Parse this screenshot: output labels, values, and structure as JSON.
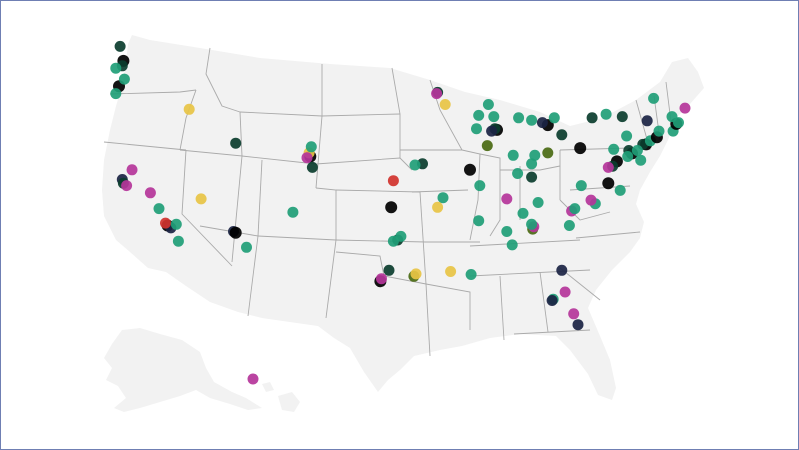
{
  "map": {
    "region": "United States",
    "legend": [],
    "colors": {
      "teal": "#1f9e77",
      "dark_green": "#0b3d2e",
      "black": "#000000",
      "navy": "#1b2444",
      "magenta": "#b5359a",
      "yellow": "#e8c445",
      "olive": "#4a6a12",
      "red": "#d1332e"
    },
    "markers": [
      {
        "lon": -122.3,
        "lat": 47.6,
        "color": "black"
      },
      {
        "lon": -122.4,
        "lat": 47.2,
        "color": "dark_green"
      },
      {
        "lon": -122.6,
        "lat": 48.8,
        "color": "dark_green"
      },
      {
        "lon": -123.0,
        "lat": 47.0,
        "color": "teal"
      },
      {
        "lon": -122.7,
        "lat": 45.5,
        "color": "black"
      },
      {
        "lon": -123.0,
        "lat": 44.9,
        "color": "teal"
      },
      {
        "lon": -122.2,
        "lat": 46.1,
        "color": "teal"
      },
      {
        "lon": -116.2,
        "lat": 43.6,
        "color": "yellow"
      },
      {
        "lon": -122.4,
        "lat": 37.8,
        "color": "navy"
      },
      {
        "lon": -122.3,
        "lat": 37.5,
        "color": "dark_green"
      },
      {
        "lon": -122.0,
        "lat": 37.3,
        "color": "magenta"
      },
      {
        "lon": -121.5,
        "lat": 38.6,
        "color": "magenta"
      },
      {
        "lon": -119.8,
        "lat": 36.7,
        "color": "magenta"
      },
      {
        "lon": -118.2,
        "lat": 34.0,
        "color": "black"
      },
      {
        "lon": -117.9,
        "lat": 33.8,
        "color": "navy"
      },
      {
        "lon": -118.4,
        "lat": 34.2,
        "color": "red"
      },
      {
        "lon": -117.2,
        "lat": 32.7,
        "color": "teal"
      },
      {
        "lon": -119.0,
        "lat": 35.4,
        "color": "teal"
      },
      {
        "lon": -117.4,
        "lat": 34.1,
        "color": "teal"
      },
      {
        "lon": -115.1,
        "lat": 36.2,
        "color": "yellow"
      },
      {
        "lon": -111.9,
        "lat": 40.8,
        "color": "dark_green"
      },
      {
        "lon": -112.1,
        "lat": 33.5,
        "color": "navy"
      },
      {
        "lon": -111.9,
        "lat": 33.4,
        "color": "black"
      },
      {
        "lon": -110.9,
        "lat": 32.2,
        "color": "teal"
      },
      {
        "lon": -106.6,
        "lat": 35.1,
        "color": "teal"
      },
      {
        "lon": -104.99,
        "lat": 39.7,
        "color": "black"
      },
      {
        "lon": -105.1,
        "lat": 40.0,
        "color": "yellow"
      },
      {
        "lon": -104.8,
        "lat": 38.8,
        "color": "dark_green"
      },
      {
        "lon": -105.3,
        "lat": 39.6,
        "color": "magenta"
      },
      {
        "lon": -104.9,
        "lat": 40.5,
        "color": "teal"
      },
      {
        "lon": -93.2,
        "lat": 45.0,
        "color": "dark_green"
      },
      {
        "lon": -93.3,
        "lat": 44.9,
        "color": "magenta"
      },
      {
        "lon": -92.5,
        "lat": 44.0,
        "color": "yellow"
      },
      {
        "lon": -89.4,
        "lat": 43.1,
        "color": "teal"
      },
      {
        "lon": -88.5,
        "lat": 44.0,
        "color": "teal"
      },
      {
        "lon": -88.0,
        "lat": 43.0,
        "color": "teal"
      },
      {
        "lon": -87.7,
        "lat": 41.9,
        "color": "black"
      },
      {
        "lon": -87.9,
        "lat": 42.0,
        "color": "dark_green"
      },
      {
        "lon": -88.2,
        "lat": 41.8,
        "color": "navy"
      },
      {
        "lon": -88.6,
        "lat": 40.6,
        "color": "olive"
      },
      {
        "lon": -89.6,
        "lat": 42.0,
        "color": "teal"
      },
      {
        "lon": -90.2,
        "lat": 38.6,
        "color": "black"
      },
      {
        "lon": -89.3,
        "lat": 37.3,
        "color": "teal"
      },
      {
        "lon": -94.6,
        "lat": 39.1,
        "color": "dark_green"
      },
      {
        "lon": -95.3,
        "lat": 39.0,
        "color": "teal"
      },
      {
        "lon": -97.3,
        "lat": 37.7,
        "color": "red"
      },
      {
        "lon": -92.7,
        "lat": 36.3,
        "color": "teal"
      },
      {
        "lon": -93.2,
        "lat": 35.5,
        "color": "yellow"
      },
      {
        "lon": -97.5,
        "lat": 35.5,
        "color": "black"
      },
      {
        "lon": -96.9,
        "lat": 32.8,
        "color": "dark_green"
      },
      {
        "lon": -97.3,
        "lat": 32.7,
        "color": "teal"
      },
      {
        "lon": -96.6,
        "lat": 33.1,
        "color": "teal"
      },
      {
        "lon": -97.7,
        "lat": 30.3,
        "color": "dark_green"
      },
      {
        "lon": -98.5,
        "lat": 29.4,
        "color": "black"
      },
      {
        "lon": -98.4,
        "lat": 29.6,
        "color": "magenta"
      },
      {
        "lon": -95.4,
        "lat": 29.8,
        "color": "olive"
      },
      {
        "lon": -95.2,
        "lat": 30.0,
        "color": "yellow"
      },
      {
        "lon": -92.0,
        "lat": 30.2,
        "color": "yellow"
      },
      {
        "lon": -90.1,
        "lat": 29.95,
        "color": "teal"
      },
      {
        "lon": -89.4,
        "lat": 34.4,
        "color": "teal"
      },
      {
        "lon": -86.8,
        "lat": 33.5,
        "color": "teal"
      },
      {
        "lon": -86.3,
        "lat": 32.4,
        "color": "teal"
      },
      {
        "lon": -86.8,
        "lat": 36.2,
        "color": "magenta"
      },
      {
        "lon": -85.3,
        "lat": 35.0,
        "color": "teal"
      },
      {
        "lon": -83.9,
        "lat": 35.9,
        "color": "teal"
      },
      {
        "lon": -84.4,
        "lat": 33.7,
        "color": "olive"
      },
      {
        "lon": -84.3,
        "lat": 33.9,
        "color": "magenta"
      },
      {
        "lon": -84.5,
        "lat": 34.1,
        "color": "teal"
      },
      {
        "lon": -81.0,
        "lat": 34.0,
        "color": "teal"
      },
      {
        "lon": -80.8,
        "lat": 35.2,
        "color": "magenta"
      },
      {
        "lon": -80.5,
        "lat": 35.4,
        "color": "teal"
      },
      {
        "lon": -78.6,
        "lat": 35.8,
        "color": "teal"
      },
      {
        "lon": -79.0,
        "lat": 36.1,
        "color": "magenta"
      },
      {
        "lon": -81.7,
        "lat": 30.3,
        "color": "navy"
      },
      {
        "lon": -82.5,
        "lat": 27.9,
        "color": "teal"
      },
      {
        "lon": -81.4,
        "lat": 28.5,
        "color": "magenta"
      },
      {
        "lon": -80.2,
        "lat": 25.8,
        "color": "navy"
      },
      {
        "lon": -80.6,
        "lat": 26.7,
        "color": "magenta"
      },
      {
        "lon": -82.6,
        "lat": 27.8,
        "color": "navy"
      },
      {
        "lon": -85.8,
        "lat": 38.3,
        "color": "teal"
      },
      {
        "lon": -84.5,
        "lat": 38.0,
        "color": "dark_green"
      },
      {
        "lon": -84.5,
        "lat": 39.1,
        "color": "teal"
      },
      {
        "lon": -83.0,
        "lat": 40.0,
        "color": "olive"
      },
      {
        "lon": -86.2,
        "lat": 39.8,
        "color": "teal"
      },
      {
        "lon": -84.2,
        "lat": 39.8,
        "color": "teal"
      },
      {
        "lon": -83.0,
        "lat": 42.3,
        "color": "black"
      },
      {
        "lon": -83.5,
        "lat": 42.5,
        "color": "navy"
      },
      {
        "lon": -84.5,
        "lat": 42.7,
        "color": "teal"
      },
      {
        "lon": -85.7,
        "lat": 42.9,
        "color": "teal"
      },
      {
        "lon": -82.4,
        "lat": 42.9,
        "color": "teal"
      },
      {
        "lon": -81.7,
        "lat": 41.5,
        "color": "dark_green"
      },
      {
        "lon": -80.0,
        "lat": 40.4,
        "color": "black"
      },
      {
        "lon": -78.9,
        "lat": 42.9,
        "color": "dark_green"
      },
      {
        "lon": -77.6,
        "lat": 43.2,
        "color": "teal"
      },
      {
        "lon": -76.1,
        "lat": 43.0,
        "color": "dark_green"
      },
      {
        "lon": -73.8,
        "lat": 42.65,
        "color": "navy"
      },
      {
        "lon": -73.9,
        "lat": 40.7,
        "color": "black"
      },
      {
        "lon": -74.2,
        "lat": 40.7,
        "color": "dark_green"
      },
      {
        "lon": -73.5,
        "lat": 41.0,
        "color": "teal"
      },
      {
        "lon": -72.9,
        "lat": 41.3,
        "color": "black"
      },
      {
        "lon": -72.7,
        "lat": 41.8,
        "color": "teal"
      },
      {
        "lon": -71.4,
        "lat": 41.8,
        "color": "teal"
      },
      {
        "lon": -71.1,
        "lat": 42.4,
        "color": "black"
      },
      {
        "lon": -70.9,
        "lat": 42.5,
        "color": "teal"
      },
      {
        "lon": -71.5,
        "lat": 43.0,
        "color": "teal"
      },
      {
        "lon": -70.3,
        "lat": 43.7,
        "color": "magenta"
      },
      {
        "lon": -73.2,
        "lat": 44.5,
        "color": "teal"
      },
      {
        "lon": -75.2,
        "lat": 39.95,
        "color": "black"
      },
      {
        "lon": -75.5,
        "lat": 40.2,
        "color": "dark_green"
      },
      {
        "lon": -76.6,
        "lat": 39.3,
        "color": "black"
      },
      {
        "lon": -77.0,
        "lat": 38.9,
        "color": "dark_green"
      },
      {
        "lon": -77.4,
        "lat": 38.8,
        "color": "magenta"
      },
      {
        "lon": -77.4,
        "lat": 37.5,
        "color": "black"
      },
      {
        "lon": -76.3,
        "lat": 36.9,
        "color": "teal"
      },
      {
        "lon": -79.9,
        "lat": 37.3,
        "color": "teal"
      },
      {
        "lon": -76.9,
        "lat": 40.3,
        "color": "teal"
      },
      {
        "lon": -75.7,
        "lat": 41.4,
        "color": "teal"
      },
      {
        "lon": -74.7,
        "lat": 40.2,
        "color": "teal"
      },
      {
        "lon": -74.4,
        "lat": 39.4,
        "color": "teal"
      },
      {
        "lon": -75.6,
        "lat": 39.7,
        "color": "teal"
      },
      {
        "lon": -155.6,
        "lat": 19.6,
        "color": "magenta"
      }
    ]
  }
}
